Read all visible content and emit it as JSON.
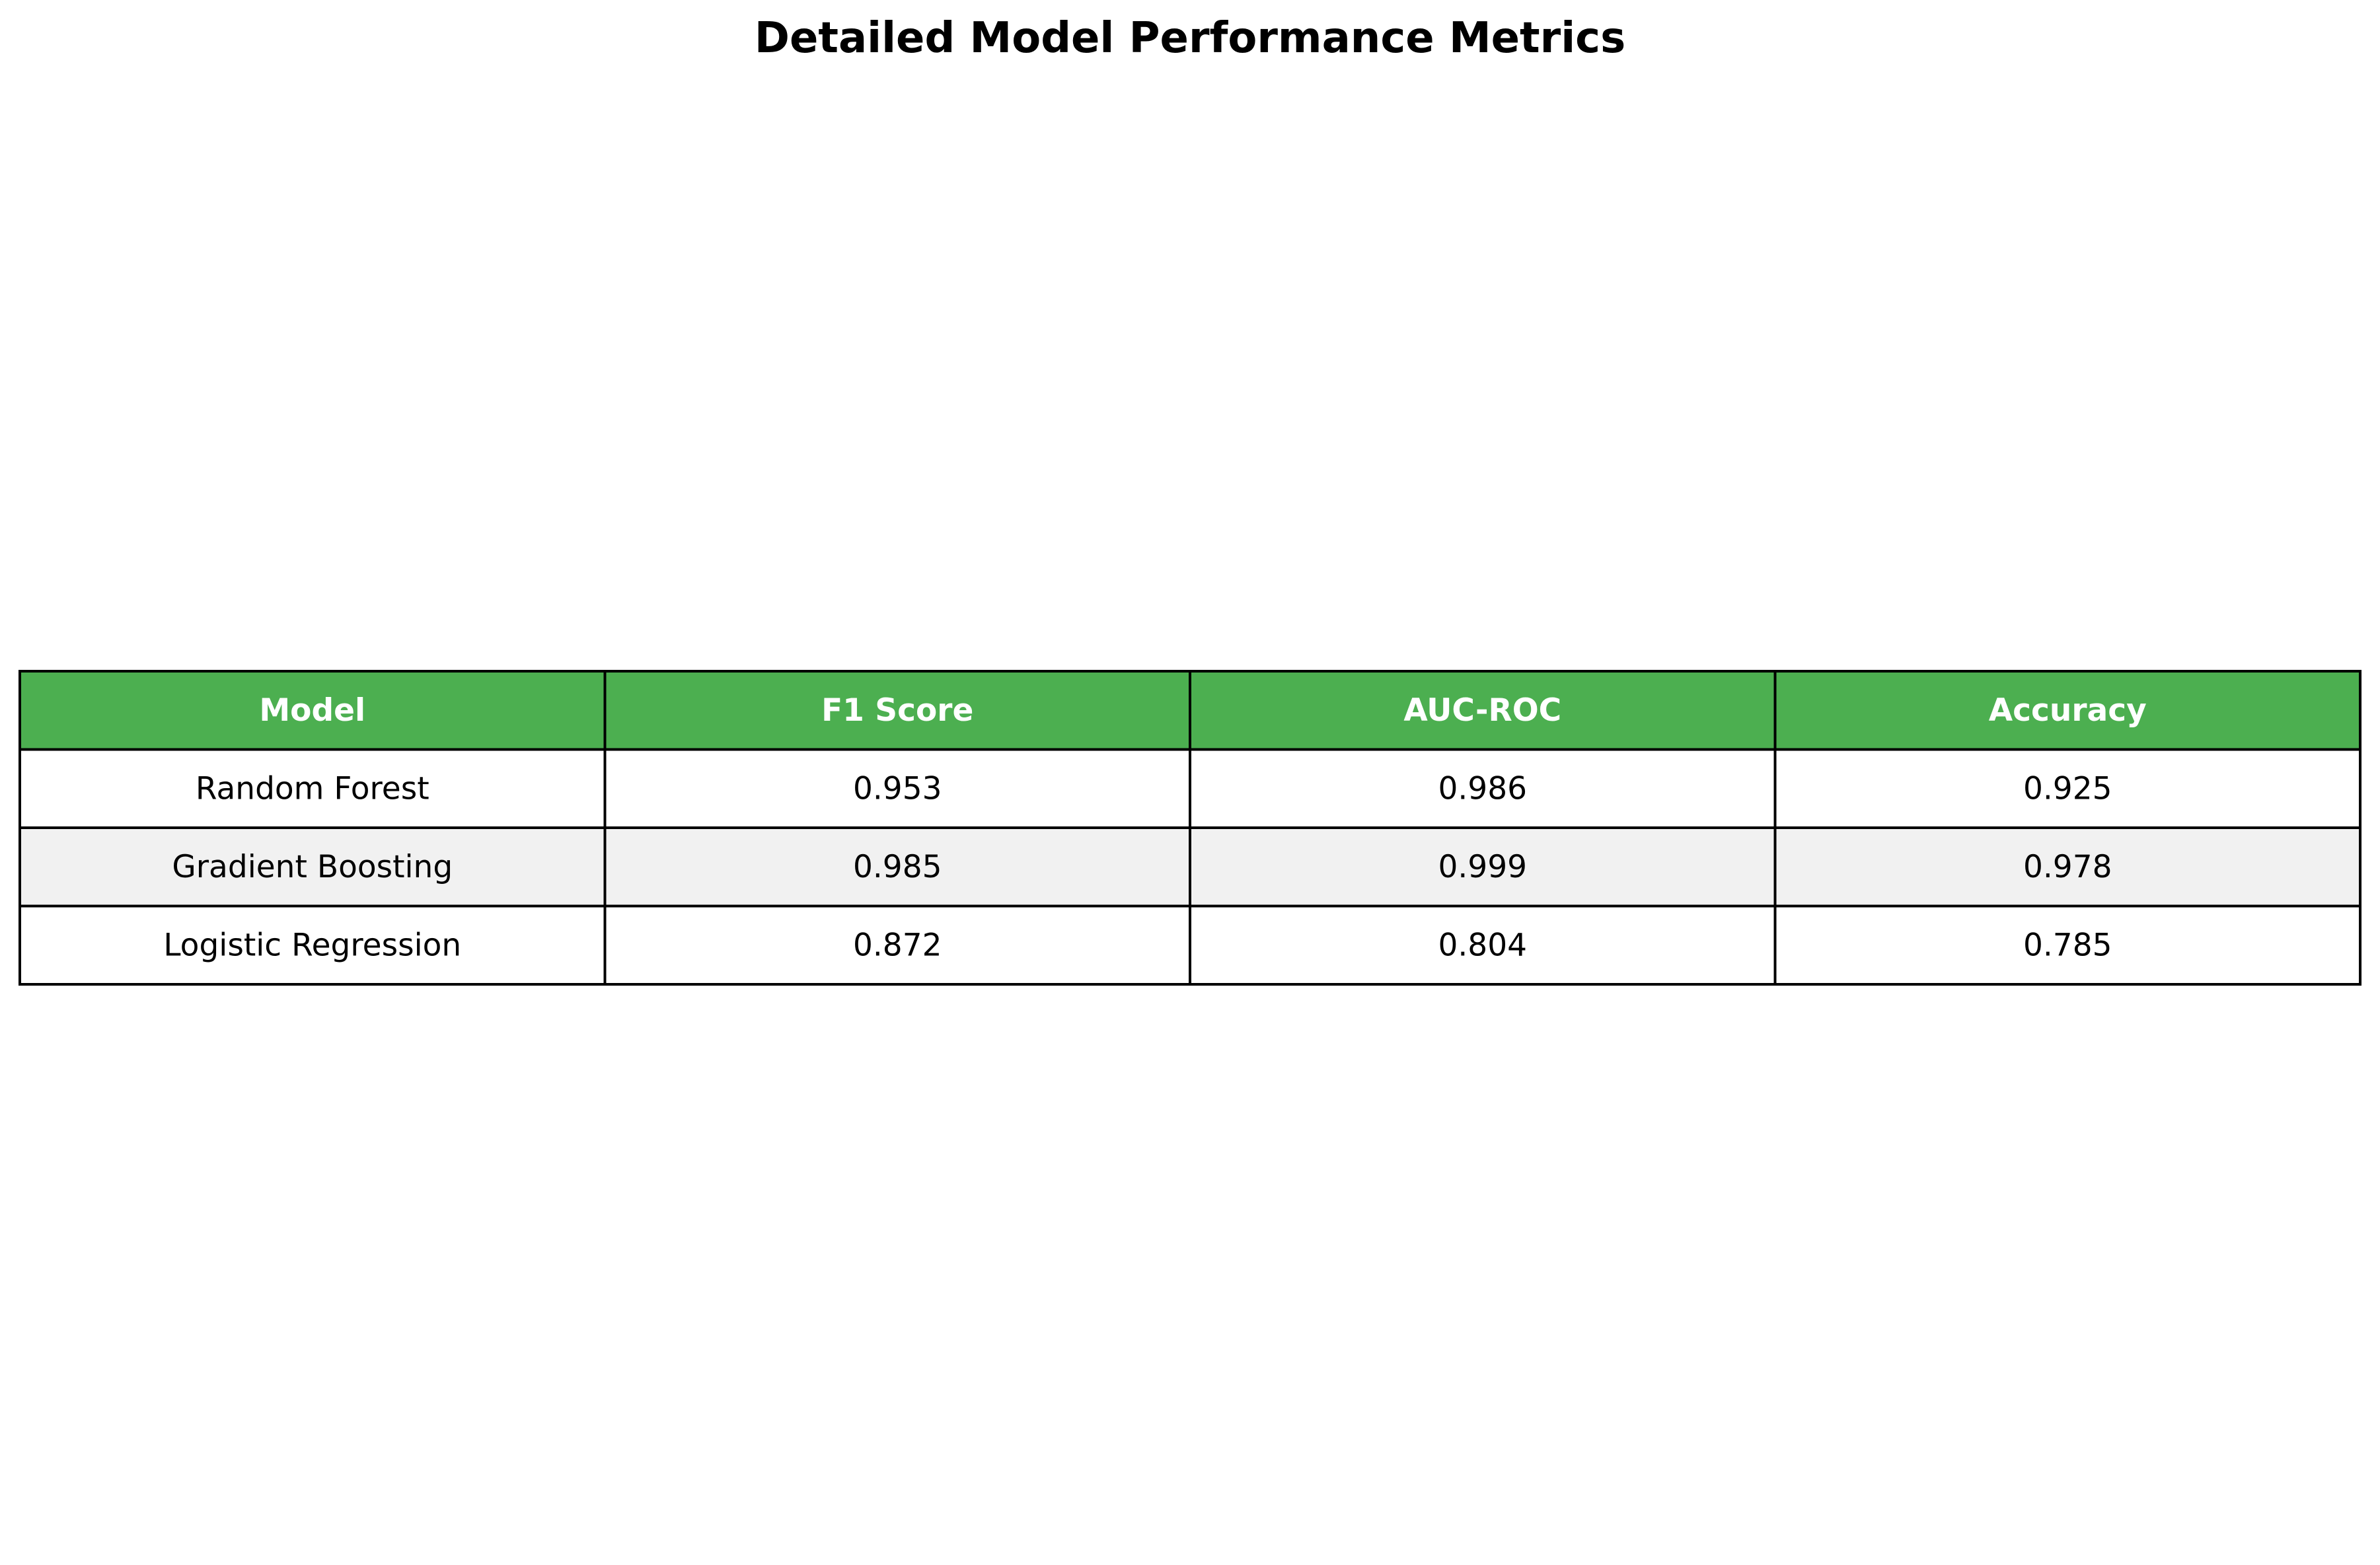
{
  "chart_data": {
    "type": "table",
    "title": "Detailed Model Performance Metrics",
    "columns": [
      "Model",
      "F1 Score",
      "AUC-ROC",
      "Accuracy"
    ],
    "rows": [
      [
        "Random Forest",
        "0.953",
        "0.986",
        "0.925"
      ],
      [
        "Gradient Boosting",
        "0.985",
        "0.999",
        "0.978"
      ],
      [
        "Logistic Regression",
        "0.872",
        "0.804",
        "0.785"
      ]
    ],
    "colors": {
      "header_bg": "#4caf50",
      "header_text": "#ffffff",
      "row_bg": "#ffffff",
      "row_alt_bg": "#f1f1f1",
      "border": "#000000",
      "text": "#000000"
    }
  }
}
